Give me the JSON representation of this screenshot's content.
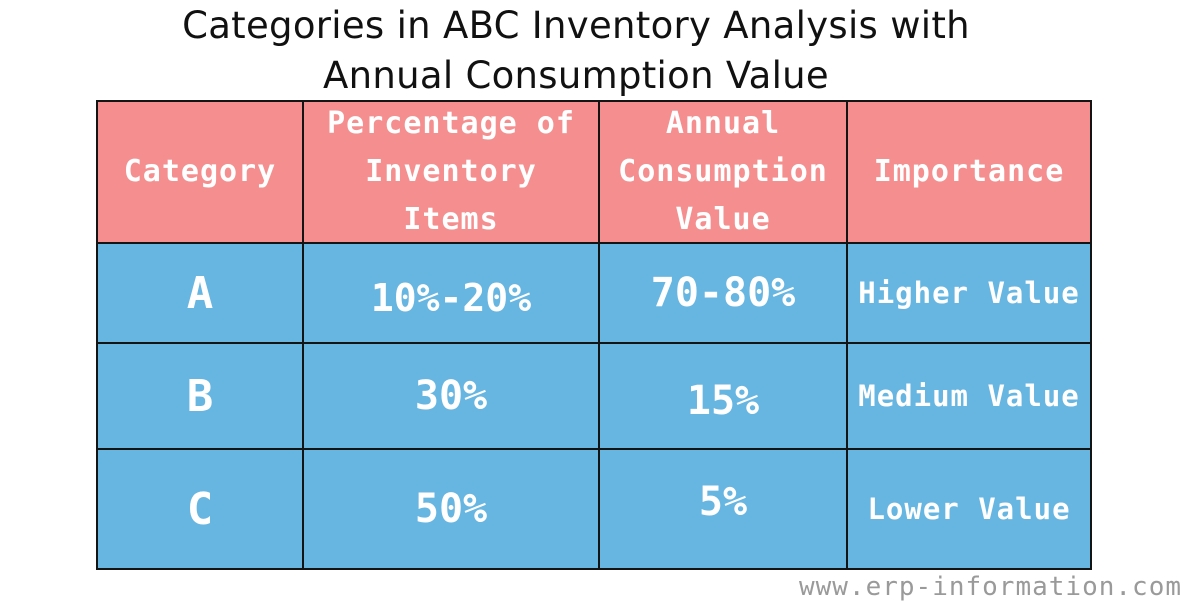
{
  "title": {
    "line1": "Categories in ABC Inventory Analysis with",
    "line2": "Annual Consumption Value"
  },
  "table": {
    "headers": [
      {
        "lines": [
          "Category"
        ]
      },
      {
        "lines": [
          "Percentage of",
          "Inventory",
          "Items"
        ]
      },
      {
        "lines": [
          "Annual",
          "Consumption",
          "Value"
        ]
      },
      {
        "lines": [
          "Importance"
        ]
      }
    ],
    "rows": [
      {
        "category": "A",
        "percentage": "10%-20%",
        "consumption": "70-80%",
        "importance": "Higher Value"
      },
      {
        "category": "B",
        "percentage": "30%",
        "consumption": "15%",
        "importance": "Medium Value"
      },
      {
        "category": "C",
        "percentage": "50%",
        "consumption": "5%",
        "importance": "Lower Value"
      }
    ]
  },
  "footer": "www.erp-information.com",
  "colors": {
    "header_fill": "#f58f8f",
    "body_fill": "#67b6e2",
    "border": "#141414",
    "cell_text": "#ffffff"
  }
}
